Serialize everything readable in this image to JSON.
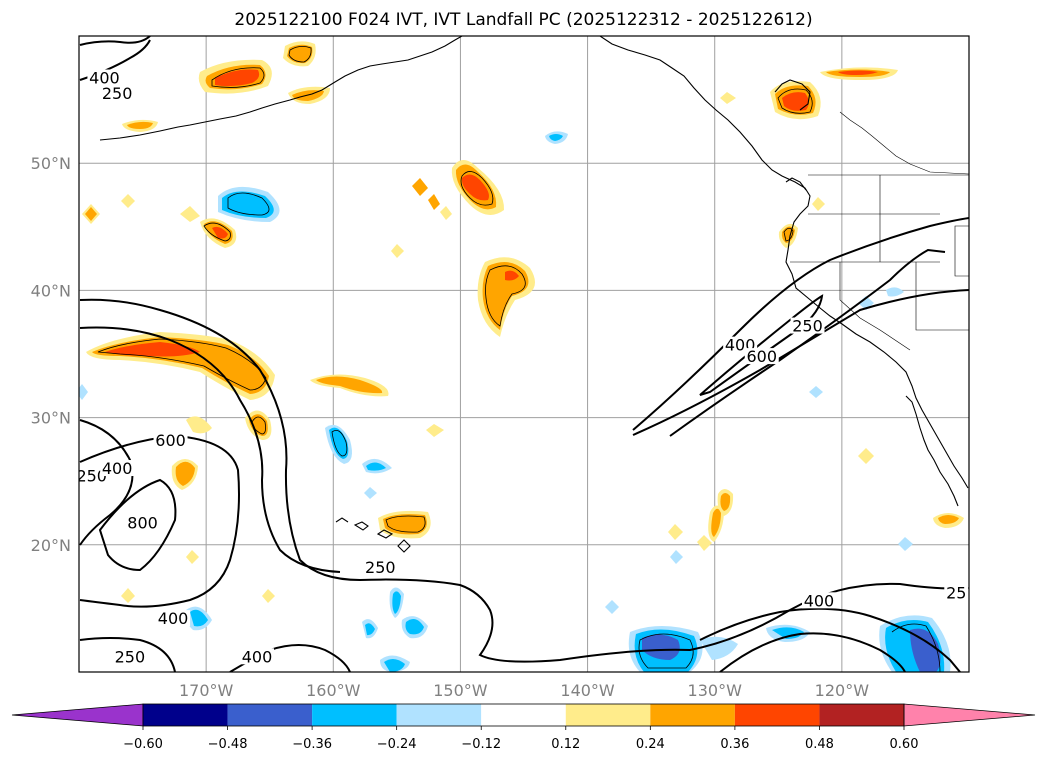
{
  "title": "2025122100 F024 IVT, IVT Landfall PC (2025122312 - 2025122612)",
  "map": {
    "lon_range": [
      -180,
      -110
    ],
    "lat_range": [
      10,
      60
    ],
    "lat_ticks": [
      {
        "value": 50,
        "label": "50°N"
      },
      {
        "value": 40,
        "label": "40°N"
      },
      {
        "value": 30,
        "label": "30°N"
      },
      {
        "value": 20,
        "label": "20°N"
      }
    ],
    "lon_ticks": [
      {
        "value": -170,
        "label": "170°W"
      },
      {
        "value": -160,
        "label": "160°W"
      },
      {
        "value": -150,
        "label": "150°W"
      },
      {
        "value": -140,
        "label": "140°W"
      },
      {
        "value": -130,
        "label": "130°W"
      },
      {
        "value": -120,
        "label": "120°W"
      }
    ],
    "ivt_contour_labels": [
      {
        "text": "400",
        "lon": -178,
        "lat": 56.5
      },
      {
        "text": "250",
        "lon": -177,
        "lat": 55.3
      },
      {
        "text": "400",
        "lon": -128,
        "lat": 35.5
      },
      {
        "text": "600",
        "lon": -126.3,
        "lat": 34.6
      },
      {
        "text": "250",
        "lon": -122.7,
        "lat": 37
      },
      {
        "text": "600",
        "lon": -172.8,
        "lat": 28
      },
      {
        "text": "250",
        "lon": -179,
        "lat": 25.2
      },
      {
        "text": "400",
        "lon": -177,
        "lat": 25.8
      },
      {
        "text": "800",
        "lon": -175,
        "lat": 21.5
      },
      {
        "text": "250",
        "lon": -156.3,
        "lat": 18
      },
      {
        "text": "400",
        "lon": -172.6,
        "lat": 14
      },
      {
        "text": "250",
        "lon": -176,
        "lat": 11
      },
      {
        "text": "400",
        "lon": -166,
        "lat": 11
      },
      {
        "text": "400",
        "lon": -121.8,
        "lat": 15.4
      },
      {
        "text": "25",
        "lon": -111,
        "lat": 16
      }
    ]
  },
  "colorbar": {
    "colors": [
      "#9a33cc",
      "#00008b",
      "#3a5fcd",
      "#00bfff",
      "#b0e2ff",
      "#ffffff",
      "#ffec8b",
      "#ffa500",
      "#ff4500",
      "#b22222",
      "#ff82ab"
    ],
    "tick_labels": [
      "−0.60",
      "−0.48",
      "−0.36",
      "−0.24",
      "−0.12",
      "0.12",
      "0.24",
      "0.36",
      "0.48",
      "0.60"
    ]
  }
}
